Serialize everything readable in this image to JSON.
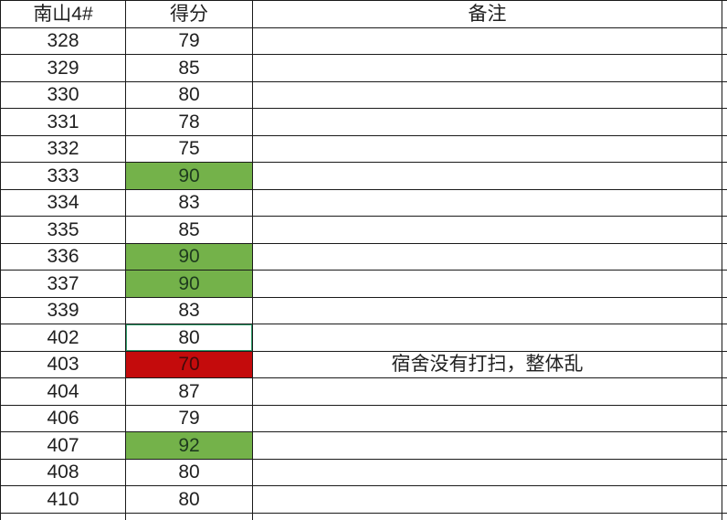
{
  "sheet_title": "南山4#",
  "table": {
    "columns": [
      "南山4#",
      "得分",
      "备注"
    ],
    "rows": [
      {
        "room": "328",
        "score": "79",
        "remark": "",
        "highlight": "none"
      },
      {
        "room": "329",
        "score": "85",
        "remark": "",
        "highlight": "none"
      },
      {
        "room": "330",
        "score": "80",
        "remark": "",
        "highlight": "none"
      },
      {
        "room": "331",
        "score": "78",
        "remark": "",
        "highlight": "none"
      },
      {
        "room": "332",
        "score": "75",
        "remark": "",
        "highlight": "none"
      },
      {
        "room": "333",
        "score": "90",
        "remark": "",
        "highlight": "green"
      },
      {
        "room": "334",
        "score": "83",
        "remark": "",
        "highlight": "none"
      },
      {
        "room": "335",
        "score": "85",
        "remark": "",
        "highlight": "none"
      },
      {
        "room": "336",
        "score": "90",
        "remark": "",
        "highlight": "green"
      },
      {
        "room": "337",
        "score": "90",
        "remark": "",
        "highlight": "green"
      },
      {
        "room": "339",
        "score": "83",
        "remark": "",
        "highlight": "none"
      },
      {
        "room": "402",
        "score": "80",
        "remark": "",
        "highlight": "selected"
      },
      {
        "room": "403",
        "score": "70",
        "remark": "宿舍没有打扫，整体乱",
        "highlight": "red"
      },
      {
        "room": "404",
        "score": "87",
        "remark": "",
        "highlight": "none"
      },
      {
        "room": "406",
        "score": "79",
        "remark": "",
        "highlight": "none"
      },
      {
        "room": "407",
        "score": "92",
        "remark": "",
        "highlight": "green"
      },
      {
        "room": "408",
        "score": "80",
        "remark": "",
        "highlight": "none"
      },
      {
        "room": "410",
        "score": "80",
        "remark": "",
        "highlight": "none"
      }
    ]
  },
  "colors": {
    "grid_line": "#1a1a1a",
    "green_fill": "#74b24a",
    "red_fill": "#c40b0c",
    "selection_border": "#2f9d6b",
    "text": "#212121",
    "green_cell_text": "#1e3b1e",
    "red_cell_text": "#420a0a",
    "background": "#ffffff"
  }
}
